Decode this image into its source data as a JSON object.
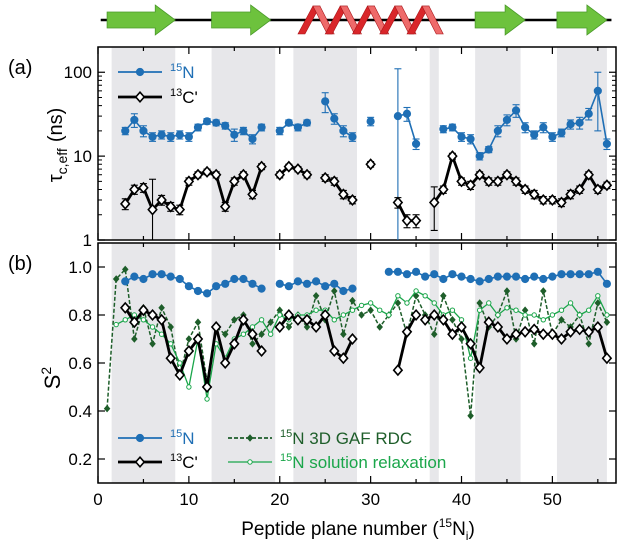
{
  "chart_data": [
    {
      "panel_label": "(a)",
      "type": "line",
      "ylabel_main": "τ",
      "ylabel_sub": "c,eff",
      "ylabel_unit": "(ns)",
      "yscale": "log",
      "ylim": [
        1,
        200
      ],
      "yticks": [
        1,
        10,
        100
      ],
      "ytick_labels": [
        "1",
        "10",
        "100"
      ],
      "xlim": [
        0,
        57
      ],
      "legend": {
        "position": "top-left",
        "entries": [
          {
            "sup": "15",
            "text": "N",
            "series": 0
          },
          {
            "sup": "13",
            "text": "C'",
            "series": 1
          }
        ]
      },
      "series": [
        {
          "color": "#1f6fb5",
          "marker": "filled-circle",
          "x": [
            3,
            4,
            5,
            6,
            7,
            8,
            9,
            10,
            11,
            12,
            13,
            14,
            15,
            16,
            17,
            18,
            20,
            21,
            22,
            23,
            25,
            26,
            27,
            28,
            30,
            33,
            34,
            35,
            38,
            39,
            40,
            41,
            42,
            43,
            44,
            45,
            46,
            47,
            48,
            49,
            50,
            51,
            52,
            53,
            54,
            55,
            56
          ],
          "y": [
            20,
            27,
            20,
            17,
            18,
            17,
            18,
            17,
            22,
            26,
            25,
            23,
            18,
            20,
            16,
            22,
            20,
            25,
            22,
            25,
            45,
            28,
            20,
            17,
            26,
            30,
            32,
            14,
            21,
            22,
            17,
            16,
            10,
            12,
            20,
            27,
            35,
            22,
            18,
            22,
            17,
            19,
            24,
            25,
            32,
            60,
            14
          ],
          "err": [
            2,
            5,
            3,
            2,
            2,
            2,
            2,
            2,
            2,
            2,
            2,
            2,
            3,
            2,
            2,
            2,
            2,
            2,
            2,
            2,
            12,
            4,
            3,
            2,
            3,
            80,
            6,
            2,
            2,
            2,
            2,
            2,
            1,
            1,
            3,
            4,
            6,
            3,
            2,
            3,
            2,
            2,
            3,
            4,
            5,
            40,
            2
          ],
          "breaks_after": [
            18,
            23,
            28,
            30,
            35
          ]
        },
        {
          "color": "#000000",
          "marker": "open-diamond",
          "x": [
            3,
            4,
            5,
            6,
            7,
            8,
            9,
            10,
            11,
            12,
            13,
            14,
            15,
            16,
            17,
            18,
            20,
            21,
            22,
            23,
            25,
            26,
            27,
            28,
            30,
            33,
            34,
            35,
            37,
            38,
            39,
            40,
            41,
            42,
            43,
            44,
            45,
            46,
            47,
            48,
            49,
            50,
            51,
            52,
            53,
            54,
            55,
            56
          ],
          "y": [
            2.7,
            4,
            4.2,
            2.3,
            3,
            2.5,
            2.3,
            5,
            6,
            6.5,
            6,
            2.5,
            5,
            6,
            3.5,
            7.5,
            6,
            7.5,
            7,
            6,
            5.5,
            5,
            3.5,
            3,
            8,
            2.8,
            1.7,
            1.7,
            2.8,
            4,
            10,
            5,
            4.5,
            6,
            5,
            5,
            6,
            5,
            4,
            3.5,
            3,
            3,
            2.8,
            3.5,
            4,
            6,
            4,
            4.5
          ],
          "err": [
            0.4,
            0.5,
            0.5,
            3,
            0.4,
            0.3,
            0.3,
            0.5,
            0.5,
            0.5,
            0.5,
            0.3,
            0.5,
            0.5,
            0.4,
            0.6,
            0.5,
            0.5,
            0.5,
            0.5,
            0.5,
            0.5,
            0.4,
            0.3,
            0.6,
            0.4,
            0.3,
            0.3,
            1.5,
            0.4,
            0.8,
            0.5,
            0.5,
            0.5,
            0.5,
            0.5,
            0.5,
            0.5,
            0.4,
            0.4,
            0.3,
            0.3,
            0.3,
            0.4,
            0.4,
            0.5,
            0.4,
            0.4
          ],
          "breaks_after": [
            18,
            23,
            28,
            30,
            35
          ]
        }
      ]
    },
    {
      "panel_label": "(b)",
      "type": "line",
      "ylabel_main": "S",
      "ylabel_sup": "2",
      "ylim": [
        0.1,
        1.1
      ],
      "yticks": [
        0.2,
        0.4,
        0.6,
        0.8,
        1.0
      ],
      "ytick_labels": [
        "0.2",
        "0.4",
        "0.6",
        "0.8",
        "1.0"
      ],
      "xlim": [
        0,
        57
      ],
      "xticks": [
        0,
        10,
        20,
        30,
        40,
        50
      ],
      "xtick_labels": [
        "0",
        "10",
        "20",
        "30",
        "40",
        "50"
      ],
      "xlabel_main": "Peptide plane number (",
      "xlabel_sup": "15",
      "xlabel_N": "N",
      "xlabel_sub": "i",
      "xlabel_end": ")",
      "legend": {
        "position": "bottom",
        "entries": [
          {
            "sup": "15",
            "text": "N",
            "series": 0
          },
          {
            "sup": "13",
            "text": "C'",
            "series": 1
          },
          {
            "sup": "15",
            "text": "N 3D GAF RDC",
            "series": 2
          },
          {
            "sup": "15",
            "text": "N solution relaxation",
            "series": 3
          }
        ]
      },
      "series": [
        {
          "color": "#1f6fb5",
          "marker": "filled-circle",
          "style": "solid",
          "x": [
            3,
            4,
            5,
            6,
            7,
            8,
            9,
            10,
            11,
            12,
            13,
            14,
            15,
            16,
            17,
            18,
            20,
            21,
            22,
            23,
            24,
            25,
            26,
            27,
            28,
            32,
            33,
            34,
            35,
            36,
            37,
            38,
            39,
            40,
            41,
            42,
            43,
            44,
            45,
            46,
            47,
            48,
            49,
            50,
            51,
            52,
            53,
            54,
            55,
            56
          ],
          "y": [
            0.94,
            0.96,
            0.95,
            0.97,
            0.97,
            0.96,
            0.95,
            0.92,
            0.9,
            0.89,
            0.92,
            0.93,
            0.95,
            0.95,
            0.93,
            0.91,
            0.93,
            0.92,
            0.94,
            0.93,
            0.94,
            0.92,
            0.93,
            0.9,
            0.91,
            0.98,
            0.98,
            0.97,
            0.98,
            0.96,
            0.97,
            0.95,
            0.97,
            0.96,
            0.95,
            0.94,
            0.95,
            0.96,
            0.96,
            0.96,
            0.95,
            0.96,
            0.95,
            0.96,
            0.97,
            0.97,
            0.97,
            0.97,
            0.98,
            0.93
          ],
          "breaks_after": [
            18,
            28
          ]
        },
        {
          "color": "#000000",
          "marker": "open-diamond",
          "style": "solid-thick",
          "x": [
            3,
            4,
            5,
            6,
            7,
            8,
            9,
            10,
            11,
            12,
            13,
            14,
            15,
            16,
            17,
            18,
            20,
            21,
            22,
            23,
            24,
            25,
            26,
            27,
            28,
            33,
            34,
            35,
            36,
            37,
            38,
            39,
            40,
            41,
            42,
            43,
            44,
            45,
            46,
            47,
            48,
            49,
            50,
            51,
            52,
            53,
            54,
            55,
            56
          ],
          "y": [
            0.83,
            0.77,
            0.82,
            0.8,
            0.78,
            0.62,
            0.55,
            0.65,
            0.7,
            0.5,
            0.75,
            0.6,
            0.68,
            0.78,
            0.72,
            0.65,
            0.75,
            0.8,
            0.78,
            0.78,
            0.75,
            0.8,
            0.65,
            0.62,
            0.7,
            0.57,
            0.73,
            0.8,
            0.78,
            0.8,
            0.78,
            0.72,
            0.75,
            0.68,
            0.58,
            0.77,
            0.75,
            0.7,
            0.72,
            0.73,
            0.74,
            0.72,
            0.72,
            0.7,
            0.73,
            0.74,
            0.73,
            0.75,
            0.62
          ],
          "breaks_after": [
            18,
            28,
            35
          ]
        },
        {
          "color": "#1e5e2a",
          "marker": "small-diamond",
          "style": "dashed",
          "x": [
            1,
            2,
            3,
            4,
            5,
            6,
            7,
            8,
            9,
            10,
            11,
            12,
            13,
            14,
            15,
            16,
            17,
            18,
            19,
            20,
            21,
            22,
            23,
            24,
            25,
            26,
            27,
            28,
            29,
            30,
            31,
            32,
            33,
            34,
            35,
            36,
            37,
            38,
            39,
            40,
            41,
            42,
            43,
            44,
            45,
            46,
            47,
            48,
            49,
            50,
            51,
            52,
            53,
            54,
            55,
            56
          ],
          "y": [
            0.41,
            0.95,
            0.99,
            0.7,
            0.83,
            0.68,
            0.83,
            0.75,
            0.55,
            0.7,
            0.77,
            0.52,
            0.75,
            0.72,
            0.78,
            0.8,
            0.68,
            0.72,
            0.77,
            0.82,
            0.75,
            0.8,
            0.75,
            0.88,
            0.78,
            0.9,
            0.72,
            0.86,
            0.8,
            0.82,
            0.75,
            0.8,
            0.85,
            0.72,
            0.88,
            0.8,
            0.72,
            0.88,
            0.78,
            0.7,
            0.38,
            0.85,
            0.75,
            0.8,
            0.9,
            0.7,
            0.82,
            0.68,
            0.9,
            0.72,
            0.78,
            0.75,
            0.8,
            0.68,
            0.85,
            0.77
          ]
        },
        {
          "color": "#1aa64a",
          "marker": "small-open-circle",
          "style": "solid-thin",
          "x": [
            2,
            3,
            4,
            5,
            6,
            7,
            8,
            9,
            10,
            11,
            12,
            13,
            14,
            15,
            16,
            17,
            18,
            19,
            20,
            21,
            22,
            23,
            24,
            25,
            26,
            27,
            28,
            29,
            30,
            31,
            32,
            33,
            34,
            35,
            36,
            37,
            38,
            39,
            40,
            41,
            42,
            43,
            44,
            45,
            46,
            47,
            48,
            49,
            50,
            51,
            52,
            53,
            54,
            55,
            56
          ],
          "y": [
            0.76,
            0.78,
            0.8,
            0.78,
            0.75,
            0.72,
            0.68,
            0.6,
            0.5,
            0.7,
            0.45,
            0.68,
            0.62,
            0.7,
            0.72,
            0.75,
            0.78,
            0.72,
            0.8,
            0.78,
            0.8,
            0.8,
            0.82,
            0.82,
            0.78,
            0.8,
            0.82,
            0.84,
            0.85,
            0.82,
            0.8,
            0.88,
            0.85,
            0.9,
            0.88,
            0.85,
            0.8,
            0.82,
            0.78,
            0.62,
            0.82,
            0.85,
            0.8,
            0.83,
            0.82,
            0.8,
            0.8,
            0.78,
            0.8,
            0.82,
            0.85,
            0.8,
            0.82,
            0.88,
            0.8
          ]
        }
      ]
    }
  ],
  "colors": {
    "strand": "#6dc23d",
    "helix": "#d9262a",
    "shade": "#e7e7ea"
  },
  "secondary_structure": [
    {
      "type": "strand",
      "start": 1,
      "end": 8.5
    },
    {
      "type": "strand",
      "start": 12.5,
      "end": 19
    },
    {
      "type": "helix",
      "start": 22,
      "end": 37
    },
    {
      "type": "strand",
      "start": 41.5,
      "end": 47
    },
    {
      "type": "strand",
      "start": 50.5,
      "end": 56
    }
  ],
  "shaded_x_ranges": [
    [
      1.5,
      8.5
    ],
    [
      12.5,
      19.5
    ],
    [
      21.5,
      28.5
    ],
    [
      36.5,
      37.5
    ],
    [
      41.5,
      46.5
    ],
    [
      50.5,
      56
    ]
  ]
}
